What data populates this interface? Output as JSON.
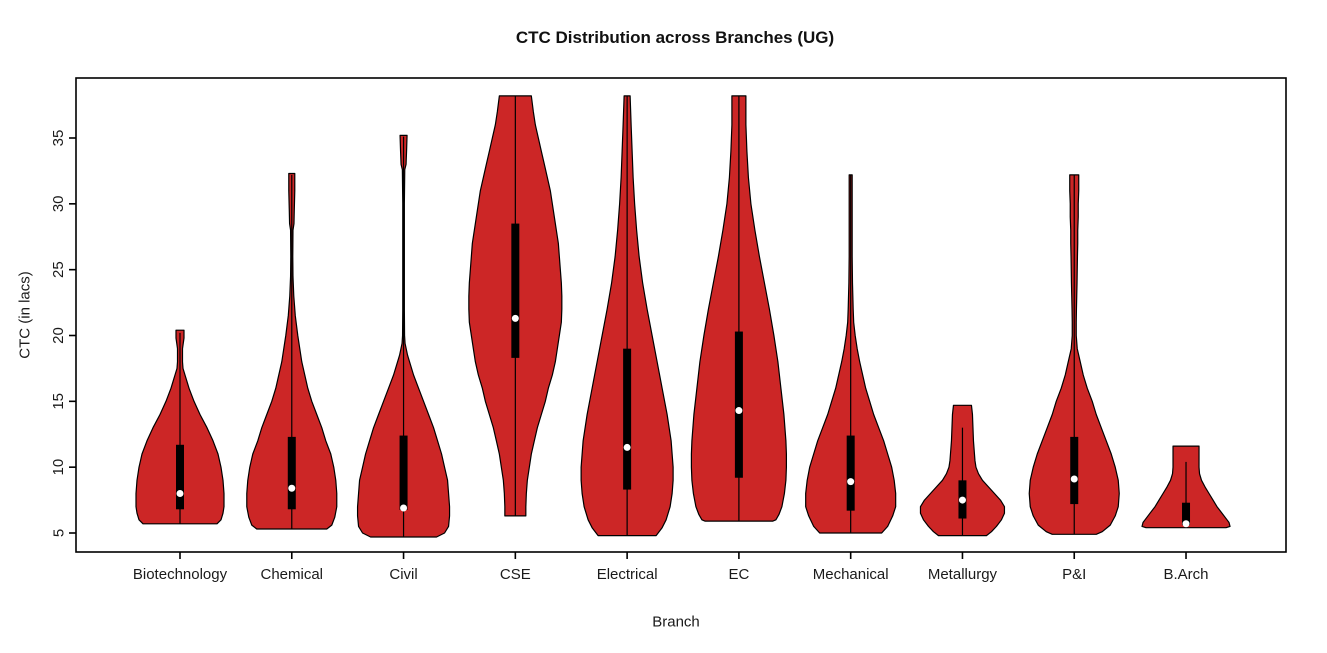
{
  "page": {
    "background": "#ffffff"
  },
  "chart_data": {
    "type": "violin",
    "title": "CTC Distribution across Branches (UG)",
    "xlabel": "Branch",
    "ylabel": "CTC (in lacs)",
    "categories": [
      "Biotechnology",
      "Chemical",
      "Civil",
      "CSE",
      "Electrical",
      "EC",
      "Mechanical",
      "Metallurgy",
      "P&I",
      "B.Arch"
    ],
    "yticks": [
      5,
      10,
      15,
      20,
      25,
      30,
      35
    ],
    "ylim": [
      4.3,
      38.5
    ],
    "grid": false,
    "legend": "none",
    "colors": {
      "violin_fill": "#CC2626",
      "violin_outline": "#000000",
      "box": "#000000",
      "median_dot": "#ffffff",
      "axis": "#000000",
      "text": "#1a1a1a"
    },
    "series": [
      {
        "name": "Biotechnology",
        "min": 5.7,
        "max": 20,
        "q1": 6.8,
        "median": 8.0,
        "q3": 11.7,
        "range_line": [
          5.7,
          20.2
        ],
        "profile": [
          [
            20.4,
            4
          ],
          [
            19.8,
            4
          ],
          [
            19,
            2.5
          ],
          [
            18,
            2.5
          ],
          [
            17.5,
            3
          ],
          [
            17,
            5
          ],
          [
            16.5,
            7
          ],
          [
            16,
            9
          ],
          [
            15,
            14
          ],
          [
            14,
            20
          ],
          [
            13,
            27
          ],
          [
            12,
            33
          ],
          [
            11,
            38
          ],
          [
            10,
            41
          ],
          [
            9,
            43
          ],
          [
            8,
            44
          ],
          [
            7,
            44
          ],
          [
            6.5,
            43
          ],
          [
            6,
            41
          ],
          [
            5.7,
            37
          ]
        ]
      },
      {
        "name": "Chemical",
        "min": 5.3,
        "max": 32,
        "q1": 6.8,
        "median": 8.4,
        "q3": 12.3,
        "range_line": [
          5.3,
          32.2
        ],
        "profile": [
          [
            32.3,
            3
          ],
          [
            31,
            3
          ],
          [
            29.5,
            2.5
          ],
          [
            28.5,
            2.2
          ],
          [
            28,
            1.2
          ],
          [
            26,
            1
          ],
          [
            24.5,
            1.2
          ],
          [
            23,
            2
          ],
          [
            21.5,
            3.5
          ],
          [
            20,
            6
          ],
          [
            18,
            10
          ],
          [
            16,
            16
          ],
          [
            15,
            20
          ],
          [
            14,
            25
          ],
          [
            13,
            30
          ],
          [
            12,
            34
          ],
          [
            11,
            39
          ],
          [
            10,
            42
          ],
          [
            9,
            44
          ],
          [
            8,
            45
          ],
          [
            7,
            45
          ],
          [
            6.2,
            43
          ],
          [
            5.6,
            40
          ],
          [
            5.3,
            35
          ]
        ]
      },
      {
        "name": "Civil",
        "min": 4.7,
        "max": 35,
        "q1": 6.75,
        "median": 6.9,
        "q3": 12.4,
        "range_line": [
          4.7,
          35.1
        ],
        "profile": [
          [
            35.2,
            3.5
          ],
          [
            34,
            3
          ],
          [
            33,
            2.5
          ],
          [
            32.6,
            1.2
          ],
          [
            30,
            0.8
          ],
          [
            26,
            0.8
          ],
          [
            22,
            0.8
          ],
          [
            20,
            1
          ],
          [
            19.4,
            1.5
          ],
          [
            18.5,
            4
          ],
          [
            18,
            6
          ],
          [
            17,
            10
          ],
          [
            16,
            15
          ],
          [
            15,
            20
          ],
          [
            14,
            25
          ],
          [
            13,
            30
          ],
          [
            12,
            34
          ],
          [
            11,
            38
          ],
          [
            10,
            41
          ],
          [
            9,
            44
          ],
          [
            8,
            45
          ],
          [
            7,
            46
          ],
          [
            6.3,
            46
          ],
          [
            5.5,
            45
          ],
          [
            5,
            41
          ],
          [
            4.7,
            33
          ]
        ]
      },
      {
        "name": "CSE",
        "min": 6.3,
        "max": 38,
        "q1": 18.3,
        "median": 21.3,
        "q3": 28.5,
        "range_line": [
          6.3,
          38.2
        ],
        "profile": [
          [
            38.2,
            16
          ],
          [
            37,
            18
          ],
          [
            36,
            20
          ],
          [
            35,
            23
          ],
          [
            34,
            26
          ],
          [
            33,
            29
          ],
          [
            32,
            32
          ],
          [
            31,
            35
          ],
          [
            30,
            37
          ],
          [
            29,
            39
          ],
          [
            28,
            41
          ],
          [
            27,
            43
          ],
          [
            26,
            44
          ],
          [
            25,
            45
          ],
          [
            24,
            46
          ],
          [
            23,
            46.5
          ],
          [
            22,
            46.5
          ],
          [
            21,
            46
          ],
          [
            20,
            44
          ],
          [
            19,
            42
          ],
          [
            18,
            40
          ],
          [
            17,
            37
          ],
          [
            16,
            33
          ],
          [
            15,
            30
          ],
          [
            14,
            26
          ],
          [
            13,
            22
          ],
          [
            12,
            19
          ],
          [
            11,
            16
          ],
          [
            10,
            14
          ],
          [
            9,
            12
          ],
          [
            8,
            11
          ],
          [
            7,
            10.5
          ],
          [
            6.3,
            10.5
          ]
        ]
      },
      {
        "name": "Electrical",
        "min": 4.8,
        "max": 38,
        "q1": 8.3,
        "median": 11.5,
        "q3": 19.0,
        "range_line": [
          4.8,
          38.2
        ],
        "profile": [
          [
            38.2,
            3
          ],
          [
            36,
            4
          ],
          [
            34,
            5
          ],
          [
            32,
            6
          ],
          [
            30,
            7.5
          ],
          [
            28,
            9.5
          ],
          [
            26,
            12
          ],
          [
            24,
            15.5
          ],
          [
            22,
            20
          ],
          [
            20,
            25
          ],
          [
            18,
            30
          ],
          [
            16,
            35
          ],
          [
            14,
            40
          ],
          [
            12,
            44
          ],
          [
            11,
            45
          ],
          [
            10,
            46
          ],
          [
            9,
            46
          ],
          [
            8,
            45
          ],
          [
            7,
            43
          ],
          [
            6,
            39
          ],
          [
            5.4,
            35
          ],
          [
            4.8,
            29
          ]
        ]
      },
      {
        "name": "EC",
        "min": 5.9,
        "max": 38,
        "q1": 9.2,
        "median": 14.3,
        "q3": 20.3,
        "range_line": [
          5.9,
          38.2
        ],
        "profile": [
          [
            38.2,
            7
          ],
          [
            36,
            7
          ],
          [
            34,
            8
          ],
          [
            32,
            9.5
          ],
          [
            30,
            12
          ],
          [
            28,
            16
          ],
          [
            26,
            20.5
          ],
          [
            24,
            25.5
          ],
          [
            22,
            30.5
          ],
          [
            20,
            35
          ],
          [
            18,
            39
          ],
          [
            16,
            42
          ],
          [
            14,
            45
          ],
          [
            12,
            47
          ],
          [
            11,
            47.5
          ],
          [
            10,
            47.5
          ],
          [
            9,
            47
          ],
          [
            8,
            45.5
          ],
          [
            7,
            43
          ],
          [
            6.4,
            40
          ],
          [
            6,
            37
          ],
          [
            5.9,
            34
          ]
        ]
      },
      {
        "name": "Mechanical",
        "min": 5.0,
        "max": 32,
        "q1": 6.7,
        "median": 8.9,
        "q3": 12.4,
        "range_line": [
          5.0,
          32.2
        ],
        "profile": [
          [
            32.2,
            1.5
          ],
          [
            30,
            1.5
          ],
          [
            28,
            1.5
          ],
          [
            26,
            1.5
          ],
          [
            24,
            1.8
          ],
          [
            22,
            2.5
          ],
          [
            21,
            3
          ],
          [
            20,
            4.5
          ],
          [
            19,
            6.5
          ],
          [
            18,
            9
          ],
          [
            17,
            12
          ],
          [
            16,
            15
          ],
          [
            15,
            19
          ],
          [
            14,
            23
          ],
          [
            13,
            28
          ],
          [
            12,
            33
          ],
          [
            11,
            37
          ],
          [
            10,
            41
          ],
          [
            9,
            43.5
          ],
          [
            8,
            45
          ],
          [
            7,
            45
          ],
          [
            6.3,
            42
          ],
          [
            5.5,
            37
          ],
          [
            5,
            31
          ]
        ]
      },
      {
        "name": "Metallurgy",
        "min": 4.8,
        "max": 14.5,
        "q1": 6.1,
        "median": 7.5,
        "q3": 9.0,
        "range_line": [
          4.8,
          13.0
        ],
        "profile": [
          [
            14.7,
            9
          ],
          [
            14,
            10
          ],
          [
            13,
            10.5
          ],
          [
            12,
            11
          ],
          [
            11,
            12
          ],
          [
            10.5,
            12.5
          ],
          [
            10,
            13.5
          ],
          [
            9.5,
            16
          ],
          [
            9,
            20
          ],
          [
            8.5,
            26
          ],
          [
            8,
            32
          ],
          [
            7.5,
            38
          ],
          [
            7,
            42
          ],
          [
            6.5,
            42
          ],
          [
            6,
            39
          ],
          [
            5.5,
            34
          ],
          [
            5.1,
            29
          ],
          [
            4.8,
            24
          ]
        ]
      },
      {
        "name": "P&I",
        "min": 4.9,
        "max": 32,
        "q1": 7.2,
        "median": 9.1,
        "q3": 12.3,
        "range_line": [
          4.9,
          32.2
        ],
        "profile": [
          [
            32.2,
            4.5
          ],
          [
            31,
            4.5
          ],
          [
            30,
            4
          ],
          [
            29,
            4
          ],
          [
            28,
            3.5
          ],
          [
            27,
            3.5
          ],
          [
            26,
            3.2
          ],
          [
            25,
            3
          ],
          [
            24,
            2.8
          ],
          [
            23,
            2.5
          ],
          [
            22,
            2.2
          ],
          [
            21,
            2
          ],
          [
            20,
            2
          ],
          [
            19,
            3
          ],
          [
            18,
            6
          ],
          [
            17,
            9
          ],
          [
            16,
            13
          ],
          [
            15,
            18
          ],
          [
            14,
            22
          ],
          [
            13,
            27
          ],
          [
            12,
            32
          ],
          [
            11,
            37
          ],
          [
            10,
            41
          ],
          [
            9,
            44
          ],
          [
            8,
            45
          ],
          [
            7,
            44
          ],
          [
            6.3,
            41
          ],
          [
            5.6,
            36
          ],
          [
            5.1,
            28
          ],
          [
            4.9,
            22
          ]
        ]
      },
      {
        "name": "B.Arch",
        "min": 5.4,
        "max": 11.2,
        "q1": 5.6,
        "median": 5.7,
        "q3": 7.3,
        "range_line": [
          5.4,
          10.4
        ],
        "profile": [
          [
            11.6,
            13
          ],
          [
            11,
            13
          ],
          [
            10.5,
            13
          ],
          [
            10,
            13
          ],
          [
            9.5,
            13.5
          ],
          [
            9,
            15.5
          ],
          [
            8.5,
            19
          ],
          [
            8,
            23
          ],
          [
            7.5,
            27
          ],
          [
            7,
            31
          ],
          [
            6.5,
            36
          ],
          [
            6,
            41
          ],
          [
            5.8,
            43
          ],
          [
            5.5,
            44
          ],
          [
            5.4,
            40
          ]
        ]
      }
    ]
  }
}
